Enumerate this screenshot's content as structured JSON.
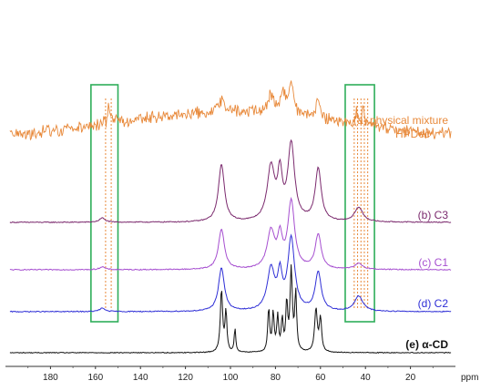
{
  "chart_data": {
    "type": "line",
    "title": "",
    "xlabel": "ppm",
    "ylabel": "",
    "x_reversed": true,
    "xlim": [
      200,
      0
    ],
    "x_ticks": [
      180,
      160,
      140,
      120,
      100,
      80,
      60,
      40,
      20
    ],
    "grid": false,
    "series": [
      {
        "name": "(a) physical mixture HPDec",
        "label_lines": [
          "(a) physical mixture",
          "HPDec"
        ],
        "color": "#e8893a",
        "noise": 0.45,
        "peaks": [
          {
            "x": 154,
            "height": 3.0,
            "width": 0.5
          },
          {
            "x": 104,
            "height": 1.5,
            "width": 1.5
          },
          {
            "x": 82,
            "height": 2.6,
            "width": 1.4
          },
          {
            "x": 77,
            "height": 3.2,
            "width": 1.2
          },
          {
            "x": 73,
            "height": 5.2,
            "width": 1.3
          },
          {
            "x": 61,
            "height": 3.0,
            "width": 0.9
          },
          {
            "x": 44,
            "height": 2.2,
            "width": 0.6
          },
          {
            "x": 41,
            "height": 3.0,
            "width": 0.5
          }
        ]
      },
      {
        "name": "(b) C3",
        "label_lines": [
          "(b) C3"
        ],
        "color": "#7b2a6e",
        "noise": 0.05,
        "peaks": [
          {
            "x": 157,
            "height": 0.45,
            "width": 1.5
          },
          {
            "x": 104,
            "height": 6.0,
            "width": 1.6
          },
          {
            "x": 82,
            "height": 5.6,
            "width": 2.0
          },
          {
            "x": 78,
            "height": 4.5,
            "width": 1.2
          },
          {
            "x": 73,
            "height": 8.0,
            "width": 1.8
          },
          {
            "x": 61,
            "height": 5.5,
            "width": 1.6
          },
          {
            "x": 43,
            "height": 1.5,
            "width": 2.2
          }
        ]
      },
      {
        "name": "(c) C1",
        "label_lines": [
          "(c) C1"
        ],
        "color": "#a64fd0",
        "noise": 0.05,
        "peaks": [
          {
            "x": 157,
            "height": 0.3,
            "width": 1.5
          },
          {
            "x": 104,
            "height": 4.2,
            "width": 1.6
          },
          {
            "x": 82,
            "height": 3.9,
            "width": 2.0
          },
          {
            "x": 78,
            "height": 3.0,
            "width": 1.2
          },
          {
            "x": 73,
            "height": 7.0,
            "width": 1.8
          },
          {
            "x": 61,
            "height": 3.6,
            "width": 1.6
          },
          {
            "x": 43,
            "height": 0.6,
            "width": 2.2
          }
        ]
      },
      {
        "name": "(d) C2",
        "label_lines": [
          "(d) C2"
        ],
        "color": "#2e2ed6",
        "noise": 0.05,
        "peaks": [
          {
            "x": 157,
            "height": 0.35,
            "width": 1.5
          },
          {
            "x": 104,
            "height": 4.5,
            "width": 1.6
          },
          {
            "x": 82,
            "height": 4.3,
            "width": 2.0
          },
          {
            "x": 78,
            "height": 3.4,
            "width": 1.2
          },
          {
            "x": 73,
            "height": 7.5,
            "width": 1.8
          },
          {
            "x": 61,
            "height": 4.0,
            "width": 1.6
          },
          {
            "x": 43,
            "height": 1.6,
            "width": 2.2
          }
        ]
      },
      {
        "name": "(e) α-CD",
        "label_lines": [
          "(e) α-CD"
        ],
        "color": "#111111",
        "noise": 0.04,
        "peaks": [
          {
            "x": 104,
            "height": 6.5,
            "width": 0.6
          },
          {
            "x": 102,
            "height": 4.2,
            "width": 0.5
          },
          {
            "x": 98,
            "height": 2.5,
            "width": 0.4
          },
          {
            "x": 83,
            "height": 4.5,
            "width": 0.5
          },
          {
            "x": 81,
            "height": 4.0,
            "width": 0.5
          },
          {
            "x": 79,
            "height": 3.6,
            "width": 0.5
          },
          {
            "x": 77,
            "height": 3.2,
            "width": 0.5
          },
          {
            "x": 75,
            "height": 5.0,
            "width": 0.5
          },
          {
            "x": 73,
            "height": 8.5,
            "width": 0.6
          },
          {
            "x": 71,
            "height": 6.0,
            "width": 0.5
          },
          {
            "x": 62,
            "height": 4.5,
            "width": 0.7
          },
          {
            "x": 60,
            "height": 3.5,
            "width": 0.6
          }
        ]
      }
    ],
    "highlight_ranges": [
      {
        "x_from": 162,
        "x_to": 150,
        "color": "#2fae5a"
      },
      {
        "x_from": 49,
        "x_to": 36,
        "color": "#2fae5a"
      }
    ],
    "guide_lines": [
      {
        "x": 155.5,
        "color": "#e8893a"
      },
      {
        "x": 153,
        "color": "#e8893a"
      },
      {
        "x": 45,
        "color": "#e8893a"
      },
      {
        "x": 43.5,
        "color": "#e8893a"
      },
      {
        "x": 42,
        "color": "#e8893a"
      },
      {
        "x": 40.5,
        "color": "#e8893a"
      },
      {
        "x": 39,
        "color": "#e8893a"
      }
    ]
  }
}
